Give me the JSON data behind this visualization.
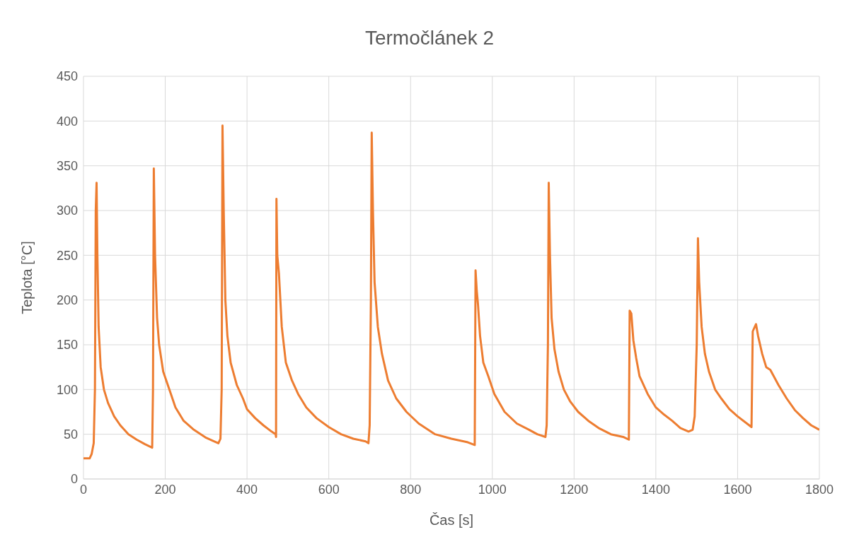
{
  "chart_data": {
    "type": "line",
    "title": "Termočlánek 2",
    "xlabel": "Čas [s]",
    "ylabel": "Teplota [°C]",
    "x": [
      0,
      15,
      20,
      25,
      28,
      30,
      32,
      34,
      37,
      42,
      50,
      60,
      75,
      90,
      110,
      130,
      150,
      168,
      170,
      172,
      175,
      180,
      185,
      195,
      210,
      225,
      245,
      270,
      300,
      320,
      330,
      335,
      338,
      340,
      343,
      347,
      352,
      360,
      375,
      390,
      400,
      420,
      440,
      460,
      470,
      471,
      472,
      474,
      478,
      485,
      495,
      510,
      525,
      545,
      570,
      600,
      630,
      660,
      690,
      697,
      700,
      703,
      705,
      708,
      712,
      720,
      730,
      745,
      765,
      790,
      820,
      860,
      900,
      940,
      957,
      959,
      962,
      965,
      970,
      978,
      990,
      1005,
      1030,
      1060,
      1090,
      1110,
      1130,
      1133,
      1136,
      1138,
      1141,
      1145,
      1152,
      1162,
      1175,
      1190,
      1210,
      1235,
      1260,
      1290,
      1320,
      1334,
      1336,
      1340,
      1345,
      1352,
      1360,
      1365,
      1380,
      1400,
      1420,
      1440,
      1460,
      1480,
      1490,
      1495,
      1500,
      1503,
      1506,
      1512,
      1520,
      1530,
      1545,
      1560,
      1580,
      1600,
      1620,
      1634,
      1637,
      1642,
      1645,
      1650,
      1660,
      1670,
      1680,
      1700,
      1720,
      1740,
      1760,
      1780,
      1800
    ],
    "series": [
      {
        "color": "#ed7d31",
        "values": [
          23,
          23,
          28,
          40,
          100,
          300,
          331,
          250,
          170,
          125,
          100,
          85,
          70,
          60,
          50,
          44,
          39,
          35,
          100,
          347,
          250,
          180,
          150,
          120,
          100,
          80,
          65,
          55,
          46,
          42,
          40,
          45,
          100,
          395,
          300,
          200,
          160,
          130,
          105,
          90,
          78,
          68,
          60,
          53,
          50,
          47,
          313,
          250,
          230,
          170,
          130,
          110,
          95,
          80,
          68,
          58,
          50,
          45,
          42,
          40,
          60,
          200,
          387,
          300,
          220,
          170,
          140,
          110,
          90,
          75,
          62,
          50,
          45,
          41,
          38,
          233,
          210,
          195,
          160,
          130,
          115,
          95,
          75,
          62,
          55,
          50,
          47,
          60,
          150,
          331,
          250,
          180,
          145,
          120,
          100,
          87,
          75,
          65,
          57,
          50,
          47,
          44,
          188,
          185,
          155,
          135,
          115,
          110,
          95,
          80,
          72,
          65,
          57,
          53,
          55,
          70,
          150,
          269,
          220,
          170,
          140,
          120,
          100,
          90,
          78,
          70,
          63,
          58,
          165,
          170,
          173,
          160,
          140,
          125,
          122,
          105,
          90,
          77,
          68,
          60,
          55
        ]
      }
    ],
    "xlim": [
      0,
      1800
    ],
    "xticks": [
      0,
      200,
      400,
      600,
      800,
      1000,
      1200,
      1400,
      1600,
      1800
    ],
    "ylim": [
      0,
      450
    ],
    "yticks": [
      0,
      50,
      100,
      150,
      200,
      250,
      300,
      350,
      400,
      450
    ],
    "grid": true
  }
}
